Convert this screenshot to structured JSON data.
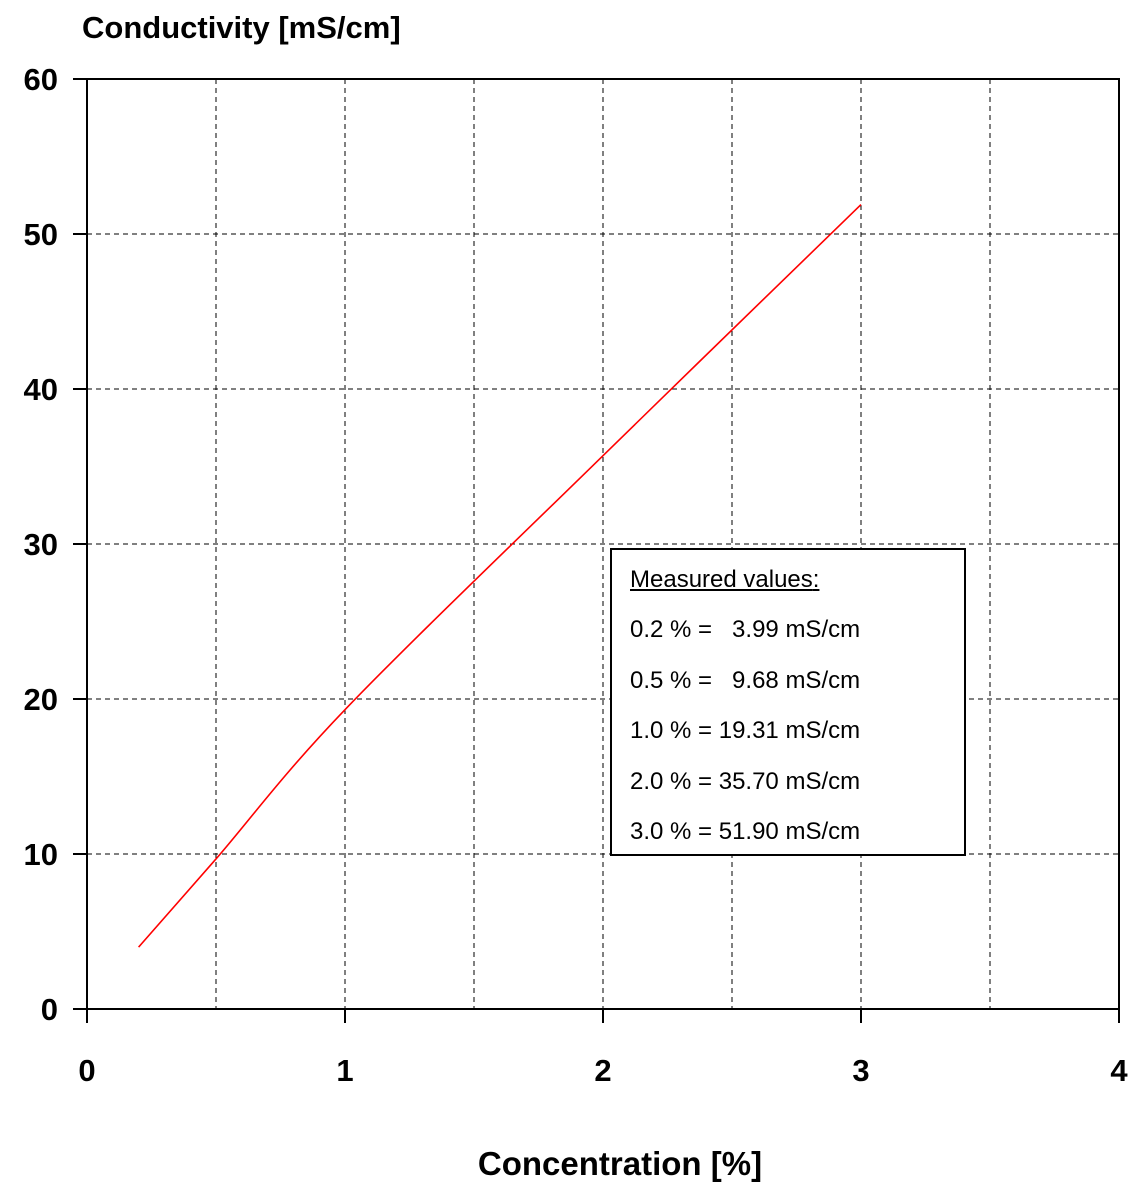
{
  "chart_data": {
    "type": "line",
    "title": "",
    "ylabel": "Conductivity [mS/cm]",
    "xlabel": "Concentration [%]",
    "xlim": [
      0,
      4
    ],
    "ylim": [
      0,
      60
    ],
    "x_ticks": [
      "0",
      "1",
      "2",
      "3",
      "4"
    ],
    "y_ticks": [
      "0",
      "10",
      "20",
      "30",
      "40",
      "50",
      "60"
    ],
    "grid": true,
    "series": [
      {
        "color": "#ff0000",
        "x": [
          0.2,
          0.5,
          1.0,
          2.0,
          3.0
        ],
        "y": [
          3.99,
          9.68,
          19.31,
          35.7,
          51.9
        ]
      }
    ],
    "annotation": {
      "title": "Measured values",
      "title_suffix": ":",
      "rows": [
        "0.2 % =   3.99 mS/cm",
        "0.5 % =   9.68 mS/cm",
        "1.0 % = 19.31 mS/cm",
        "2.0 % = 35.70 mS/cm",
        "3.0 % = 51.90 mS/cm"
      ]
    }
  }
}
